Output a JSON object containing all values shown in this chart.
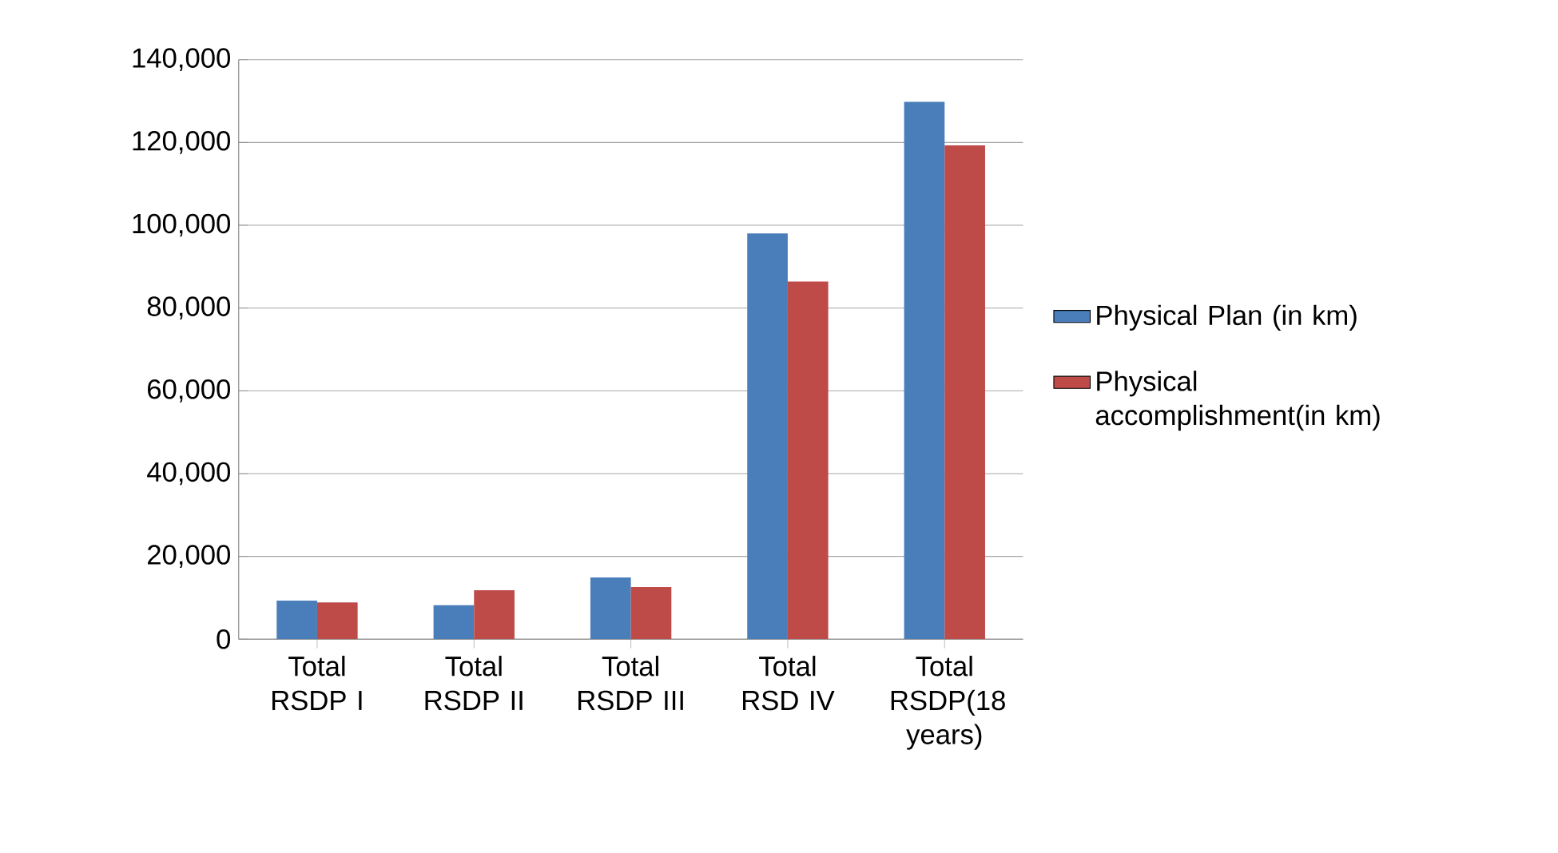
{
  "chart_data": {
    "type": "bar",
    "categories": [
      "Total RSDP I",
      "Total RSDP II",
      "Total RSDP III",
      "Total RSD IV",
      "Total RSDP(18 years)"
    ],
    "series": [
      {
        "name": "Physical Plan (in km)",
        "color": "#4a7ebb",
        "values": [
          9300,
          8200,
          14900,
          98000,
          129800
        ]
      },
      {
        "name": "Physical accomplishment(in km)",
        "color": "#be4b48",
        "values": [
          8900,
          11800,
          12600,
          86400,
          119300
        ]
      }
    ],
    "ylim": [
      0,
      140000
    ],
    "yticks": [
      {
        "value": 0,
        "label": "0"
      },
      {
        "value": 20000,
        "label": "20,000"
      },
      {
        "value": 40000,
        "label": "40,000"
      },
      {
        "value": 60000,
        "label": "60,000"
      },
      {
        "value": 80000,
        "label": "80,000"
      },
      {
        "value": 100000,
        "label": "100,000"
      },
      {
        "value": 120000,
        "label": "120,000"
      },
      {
        "value": 140000,
        "label": "140,000"
      }
    ],
    "grid": "y",
    "legend": "right"
  }
}
